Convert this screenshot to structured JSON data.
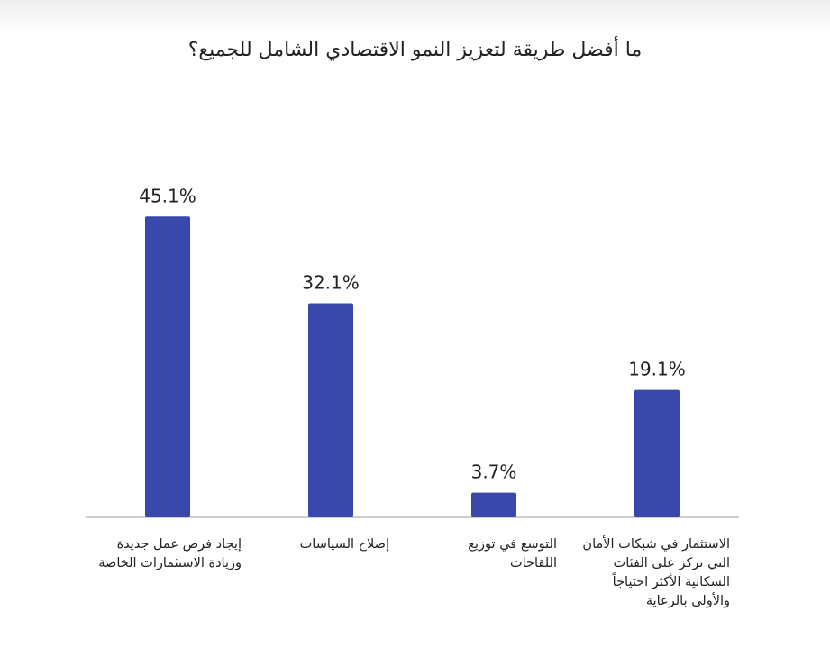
{
  "chart_data": {
    "type": "bar",
    "title": "ما أفضل طريقة لتعزيز النمو الاقتصادي الشامل للجميع؟",
    "categories": [
      "إيجاد فرص عمل جديدة وزيادة الاستثمارات الخاصة",
      "إصلاح السياسات",
      "التوسع في توزيع اللقاحات",
      "الاستثمار في شبكات الأمان التي تركز على الفئات السكانية الأكثر احتياجاً والأولى بالرعاية"
    ],
    "values": [
      45.1,
      32.1,
      3.7,
      19.1
    ],
    "value_labels": [
      "45.1%",
      "32.1%",
      "3.7%",
      "19.1%"
    ],
    "bar_color": "#3949ab",
    "ylim": [
      0,
      50
    ],
    "grid": false,
    "legend": "none"
  }
}
